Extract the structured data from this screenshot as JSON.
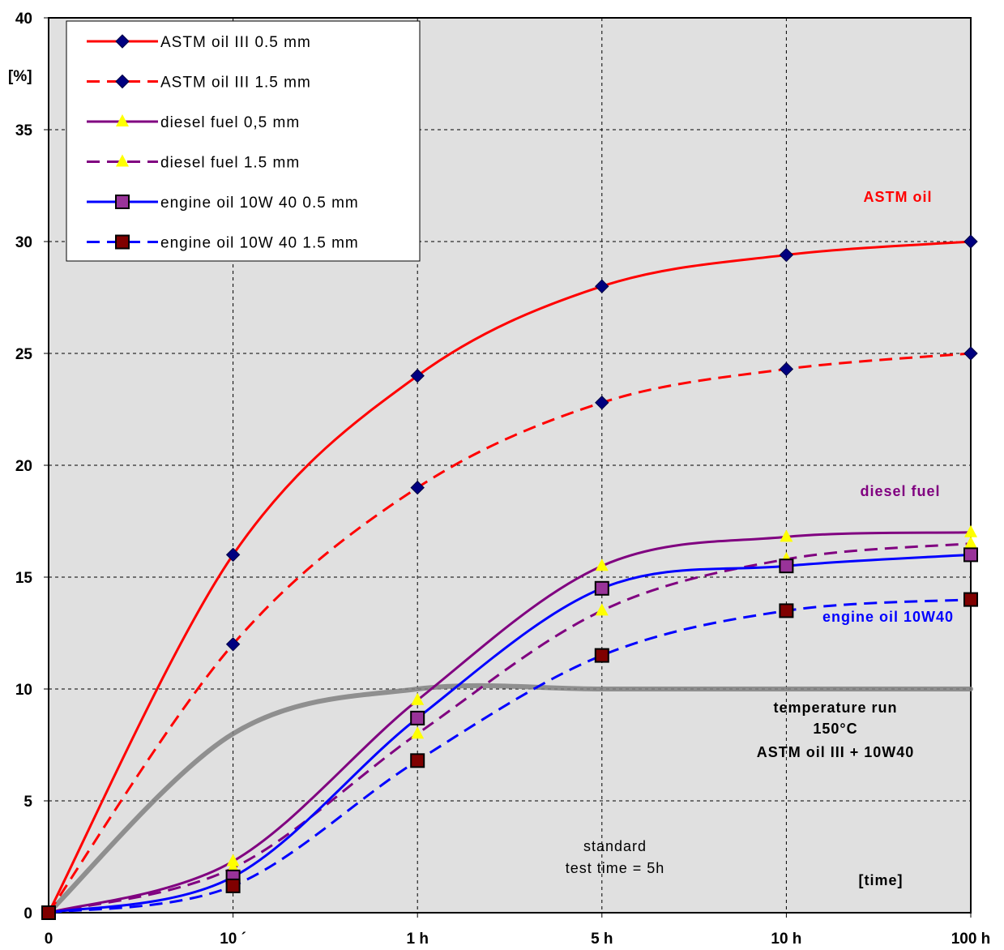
{
  "chart_data": {
    "type": "line",
    "ylabel": "[%]",
    "xlabel": "[time]",
    "ylim": [
      0,
      40
    ],
    "y_ticks": [
      "0",
      "5",
      "10",
      "15",
      "20",
      "25",
      "30",
      "35",
      "40"
    ],
    "categories": [
      "0",
      "10 ´",
      "1 h",
      "5 h",
      "10 h",
      "100 h"
    ],
    "grid": true,
    "legend_position": "top-left",
    "series": [
      {
        "name": "ASTM oil III 0.5 mm",
        "color": "#ff0000",
        "dashed": false,
        "marker": "diamond",
        "marker_color": "#000080",
        "values": [
          0,
          16,
          24,
          28,
          29.4,
          30
        ]
      },
      {
        "name": "ASTM oil III 1.5 mm",
        "color": "#ff0000",
        "dashed": true,
        "marker": "diamond",
        "marker_color": "#000080",
        "values": [
          0,
          12,
          19,
          22.8,
          24.3,
          25
        ]
      },
      {
        "name": "diesel fuel 0,5 mm",
        "color": "#800080",
        "dashed": false,
        "marker": "triangle",
        "marker_color": "#ffff00",
        "values": [
          0,
          2.3,
          9.5,
          15.5,
          16.8,
          17
        ]
      },
      {
        "name": "diesel fuel 1.5 mm",
        "color": "#800080",
        "dashed": true,
        "marker": "triangle",
        "marker_color": "#ffff00",
        "values": [
          0,
          2,
          8,
          13.5,
          15.8,
          16.5
        ]
      },
      {
        "name": "engine oil 10W 40 0.5 mm",
        "color": "#0000ff",
        "dashed": false,
        "marker": "square",
        "marker_color": "#993399",
        "values": [
          0,
          1.6,
          8.7,
          14.5,
          15.5,
          16
        ]
      },
      {
        "name": "engine oil 10W 40 1.5 mm",
        "color": "#0000ff",
        "dashed": true,
        "marker": "square",
        "marker_color": "#800000",
        "values": [
          0,
          1.2,
          6.8,
          11.5,
          13.5,
          14
        ]
      }
    ],
    "reference_line": {
      "color": "#808080",
      "values": [
        0,
        8,
        10,
        10,
        10,
        10
      ]
    },
    "annotations": {
      "astm": "ASTM oil",
      "diesel": "diesel fuel",
      "engine": "engine oil 10W40",
      "temp_line1": "temperature run",
      "temp_line2": "150°C",
      "temp_line3": "ASTM oil III + 10W40",
      "standard_line1": "standard",
      "standard_line2": "test time = 5h"
    },
    "annotation_colors": {
      "astm": "#ff0000",
      "diesel": "#800080",
      "engine": "#0000ff"
    }
  }
}
